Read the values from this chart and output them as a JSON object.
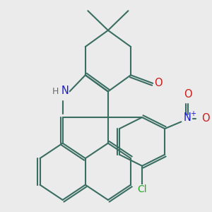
{
  "bg_color": "#ebebeb",
  "bond_color": "#3a6e62",
  "bond_width": 1.5,
  "atom_colors": {
    "N": "#1a1acc",
    "H": "#6a6a6a",
    "O": "#cc1a1a",
    "Cl": "#22aa22"
  },
  "label_fontsize": 10.5
}
